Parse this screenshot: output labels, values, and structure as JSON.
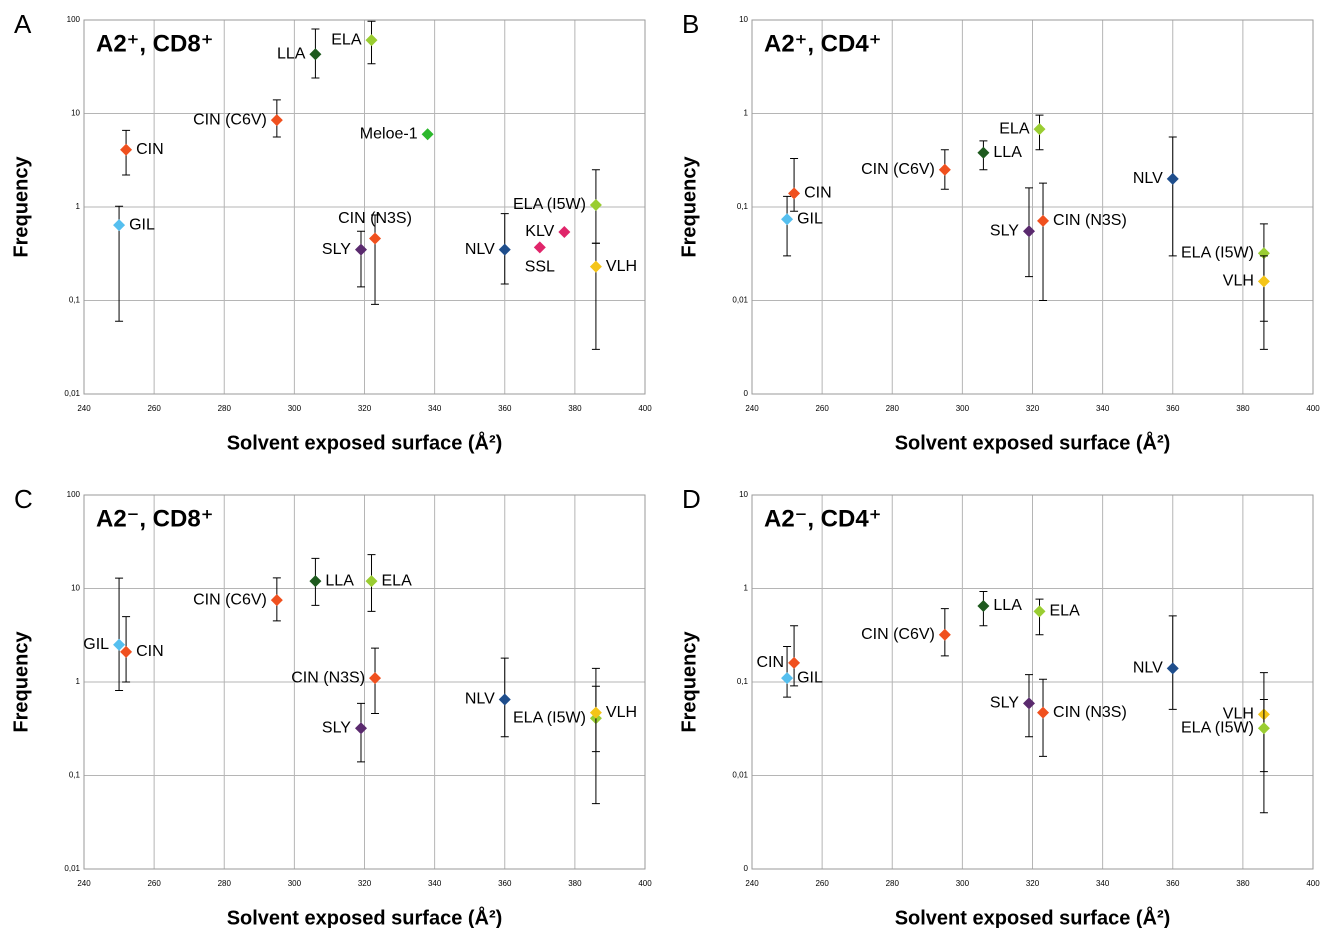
{
  "chart_data": [
    {
      "type": "scatter",
      "panel_label": "A",
      "title": "A2⁺, CD8⁺",
      "x_label": "Solvent exposed surface (Å²)",
      "y_label": "Frequency",
      "log_y": true,
      "grid": true,
      "xlim": [
        240,
        400
      ],
      "xticks": [
        240,
        260,
        280,
        300,
        320,
        340,
        360,
        380,
        400
      ],
      "ylim": [
        0.01,
        100
      ],
      "yticks": [
        {
          "value": 0.01,
          "label": "0,01"
        },
        {
          "value": 0.1,
          "label": "0,1"
        },
        1,
        10,
        100
      ],
      "series": [
        {
          "name": "LLA",
          "color": "#1e5a1e",
          "x": [
            306
          ],
          "values": [
            43
          ],
          "lower": [
            24
          ],
          "upper": [
            80
          ]
        },
        {
          "name": "ELA",
          "color": "#9acd32",
          "x": [
            322
          ],
          "values": [
            61
          ],
          "lower": [
            34
          ],
          "upper": [
            97
          ]
        },
        {
          "name": "CIN (C6V)",
          "color": "#f0501e",
          "x": [
            295
          ],
          "values": [
            8.5
          ],
          "lower": [
            5.6
          ],
          "upper": [
            14
          ]
        },
        {
          "name": "Meloe-1",
          "color": "#2db82d",
          "x": [
            338
          ],
          "values": [
            6
          ]
        },
        {
          "name": "CIN",
          "color": "#f0501e",
          "x": [
            252
          ],
          "values": [
            4.1
          ],
          "lower": [
            2.2
          ],
          "upper": [
            6.6
          ]
        },
        {
          "name": "GIL",
          "color": "#55bfef",
          "x": [
            250
          ],
          "values": [
            0.64
          ],
          "lower": [
            0.06
          ],
          "upper": [
            1.02
          ]
        },
        {
          "name": "CIN (N3S)",
          "color": "#f0501e",
          "x": [
            323
          ],
          "values": [
            0.46
          ],
          "lower": [
            0.091
          ],
          "upper": [
            0.82
          ]
        },
        {
          "name": "SLY",
          "color": "#5a2a6e",
          "x": [
            319
          ],
          "values": [
            0.35
          ],
          "lower": [
            0.14
          ],
          "upper": [
            0.55
          ]
        },
        {
          "name": "NLV",
          "color": "#1f4e8c",
          "x": [
            360
          ],
          "values": [
            0.35
          ],
          "lower": [
            0.15
          ],
          "upper": [
            0.85
          ]
        },
        {
          "name": "SSL",
          "color": "#e0256a",
          "x": [
            370
          ],
          "values": [
            0.37
          ]
        },
        {
          "name": "KLV",
          "color": "#e0256a",
          "x": [
            377
          ],
          "values": [
            0.54
          ]
        },
        {
          "name": "ELA (I5W)",
          "color": "#9acd32",
          "x": [
            386
          ],
          "values": [
            1.05
          ],
          "lower": [
            0.41
          ],
          "upper": [
            2.5
          ]
        },
        {
          "name": "VLH",
          "color": "#f5c518",
          "x": [
            386
          ],
          "values": [
            0.23
          ],
          "lower": [
            0.03
          ],
          "upper": [
            0.41
          ]
        }
      ]
    },
    {
      "type": "scatter",
      "panel_label": "B",
      "title": "A2⁺, CD4⁺",
      "x_label": "Solvent exposed surface (Å²)",
      "y_label": "Frequency",
      "log_y": true,
      "grid": true,
      "xlim": [
        240,
        400
      ],
      "xticks": [
        240,
        260,
        280,
        300,
        320,
        340,
        360,
        380,
        400
      ],
      "ylim": [
        0.001,
        10
      ],
      "yticks": [
        {
          "value": 0.001,
          "label": "0"
        },
        {
          "value": 0.01,
          "label": "0,01"
        },
        {
          "value": 0.1,
          "label": "0,1"
        },
        1,
        10
      ],
      "series": [
        {
          "name": "CIN",
          "color": "#f0501e",
          "x": [
            252
          ],
          "values": [
            0.14
          ],
          "lower": [
            0.09
          ],
          "upper": [
            0.33
          ]
        },
        {
          "name": "GIL",
          "color": "#55bfef",
          "x": [
            250
          ],
          "values": [
            0.074
          ],
          "lower": [
            0.03
          ],
          "upper": [
            0.13
          ]
        },
        {
          "name": "CIN (C6V)",
          "color": "#f0501e",
          "x": [
            295
          ],
          "values": [
            0.25
          ],
          "lower": [
            0.155
          ],
          "upper": [
            0.41
          ]
        },
        {
          "name": "LLA",
          "color": "#1e5a1e",
          "x": [
            306
          ],
          "values": [
            0.38
          ],
          "lower": [
            0.25
          ],
          "upper": [
            0.51
          ]
        },
        {
          "name": "ELA",
          "color": "#9acd32",
          "x": [
            322
          ],
          "values": [
            0.68
          ],
          "lower": [
            0.41
          ],
          "upper": [
            0.96
          ]
        },
        {
          "name": "SLY",
          "color": "#5a2a6e",
          "x": [
            319
          ],
          "values": [
            0.055
          ],
          "lower": [
            0.018
          ],
          "upper": [
            0.16
          ]
        },
        {
          "name": "CIN (N3S)",
          "color": "#f0501e",
          "x": [
            323
          ],
          "values": [
            0.071
          ],
          "lower": [
            0.01
          ],
          "upper": [
            0.18
          ]
        },
        {
          "name": "NLV",
          "color": "#1f4e8c",
          "x": [
            360
          ],
          "values": [
            0.2
          ],
          "lower": [
            0.03
          ],
          "upper": [
            0.56
          ]
        },
        {
          "name": "ELA (I5W)",
          "color": "#9acd32",
          "x": [
            386
          ],
          "values": [
            0.032
          ],
          "lower": [
            0.006
          ],
          "upper": [
            0.066
          ]
        },
        {
          "name": "VLH",
          "color": "#f5c518",
          "x": [
            386
          ],
          "values": [
            0.016
          ],
          "lower": [
            0.003
          ],
          "upper": [
            0.03
          ]
        }
      ]
    },
    {
      "type": "scatter",
      "panel_label": "C",
      "title": "A2⁻, CD8⁺",
      "x_label": "Solvent exposed surface (Å²)",
      "y_label": "Frequency",
      "log_y": true,
      "grid": true,
      "xlim": [
        240,
        400
      ],
      "xticks": [
        240,
        260,
        280,
        300,
        320,
        340,
        360,
        380,
        400
      ],
      "ylim": [
        0.01,
        100
      ],
      "yticks": [
        {
          "value": 0.01,
          "label": "0,01"
        },
        {
          "value": 0.1,
          "label": "0,1"
        },
        1,
        10,
        100
      ],
      "series": [
        {
          "name": "GIL",
          "color": "#55bfef",
          "x": [
            250
          ],
          "values": [
            2.5
          ],
          "lower": [
            0.81
          ],
          "upper": [
            12.9
          ]
        },
        {
          "name": "CIN",
          "color": "#f0501e",
          "x": [
            252
          ],
          "values": [
            2.1
          ],
          "lower": [
            1.0
          ],
          "upper": [
            5
          ]
        },
        {
          "name": "CIN (C6V)",
          "color": "#f0501e",
          "x": [
            295
          ],
          "values": [
            7.5
          ],
          "lower": [
            4.5
          ],
          "upper": [
            13
          ]
        },
        {
          "name": "LLA",
          "color": "#1e5a1e",
          "x": [
            306
          ],
          "values": [
            12
          ],
          "lower": [
            6.6
          ],
          "upper": [
            21
          ]
        },
        {
          "name": "ELA",
          "color": "#9acd32",
          "x": [
            322
          ],
          "values": [
            12
          ],
          "lower": [
            5.7
          ],
          "upper": [
            23
          ]
        },
        {
          "name": "CIN (N3S)",
          "color": "#f0501e",
          "x": [
            323
          ],
          "values": [
            1.1
          ],
          "lower": [
            0.46
          ],
          "upper": [
            2.3
          ]
        },
        {
          "name": "SLY",
          "color": "#5a2a6e",
          "x": [
            319
          ],
          "values": [
            0.32
          ],
          "lower": [
            0.14
          ],
          "upper": [
            0.59
          ]
        },
        {
          "name": "NLV",
          "color": "#1f4e8c",
          "x": [
            360
          ],
          "values": [
            0.65
          ],
          "lower": [
            0.26
          ],
          "upper": [
            1.8
          ]
        },
        {
          "name": "ELA (I5W)",
          "color": "#9acd32",
          "x": [
            386
          ],
          "values": [
            0.41
          ],
          "lower": [
            0.05
          ],
          "upper": [
            0.9
          ]
        },
        {
          "name": "VLH",
          "color": "#f5c518",
          "x": [
            386
          ],
          "values": [
            0.47
          ],
          "lower": [
            0.18
          ],
          "upper": [
            1.4
          ]
        }
      ]
    },
    {
      "type": "scatter",
      "panel_label": "D",
      "title": "A2⁻, CD4⁺",
      "x_label": "Solvent exposed surface (Å²)",
      "y_label": "Frequency",
      "log_y": true,
      "grid": true,
      "xlim": [
        240,
        400
      ],
      "xticks": [
        240,
        260,
        280,
        300,
        320,
        340,
        360,
        380,
        400
      ],
      "ylim": [
        0.001,
        10
      ],
      "yticks": [
        {
          "value": 0.001,
          "label": "0"
        },
        {
          "value": 0.01,
          "label": "0,01"
        },
        {
          "value": 0.1,
          "label": "0,1"
        },
        1,
        10
      ],
      "series": [
        {
          "name": "CIN",
          "color": "#f0501e",
          "x": [
            252
          ],
          "values": [
            0.16
          ],
          "lower": [
            0.091
          ],
          "upper": [
            0.4
          ]
        },
        {
          "name": "GIL",
          "color": "#55bfef",
          "x": [
            250
          ],
          "values": [
            0.11
          ],
          "lower": [
            0.069
          ],
          "upper": [
            0.24
          ]
        },
        {
          "name": "CIN (C6V)",
          "color": "#f0501e",
          "x": [
            295
          ],
          "values": [
            0.32
          ],
          "lower": [
            0.19
          ],
          "upper": [
            0.61
          ]
        },
        {
          "name": "LLA",
          "color": "#1e5a1e",
          "x": [
            306
          ],
          "values": [
            0.65
          ],
          "lower": [
            0.4
          ],
          "upper": [
            0.93
          ]
        },
        {
          "name": "ELA",
          "color": "#9acd32",
          "x": [
            322
          ],
          "values": [
            0.57
          ],
          "lower": [
            0.32
          ],
          "upper": [
            0.77
          ]
        },
        {
          "name": "SLY",
          "color": "#5a2a6e",
          "x": [
            319
          ],
          "values": [
            0.059
          ],
          "lower": [
            0.026
          ],
          "upper": [
            0.12
          ]
        },
        {
          "name": "CIN (N3S)",
          "color": "#f0501e",
          "x": [
            323
          ],
          "values": [
            0.047
          ],
          "lower": [
            0.016
          ],
          "upper": [
            0.107
          ]
        },
        {
          "name": "NLV",
          "color": "#1f4e8c",
          "x": [
            360
          ],
          "values": [
            0.14
          ],
          "lower": [
            0.051
          ],
          "upper": [
            0.51
          ]
        },
        {
          "name": "VLH",
          "color": "#f5c518",
          "x": [
            386
          ],
          "values": [
            0.045
          ],
          "lower": [
            0.011
          ],
          "upper": [
            0.126
          ]
        },
        {
          "name": "ELA (I5W)",
          "color": "#9acd32",
          "x": [
            386
          ],
          "values": [
            0.032
          ],
          "lower": [
            0.004
          ],
          "upper": [
            0.065
          ]
        }
      ]
    }
  ]
}
